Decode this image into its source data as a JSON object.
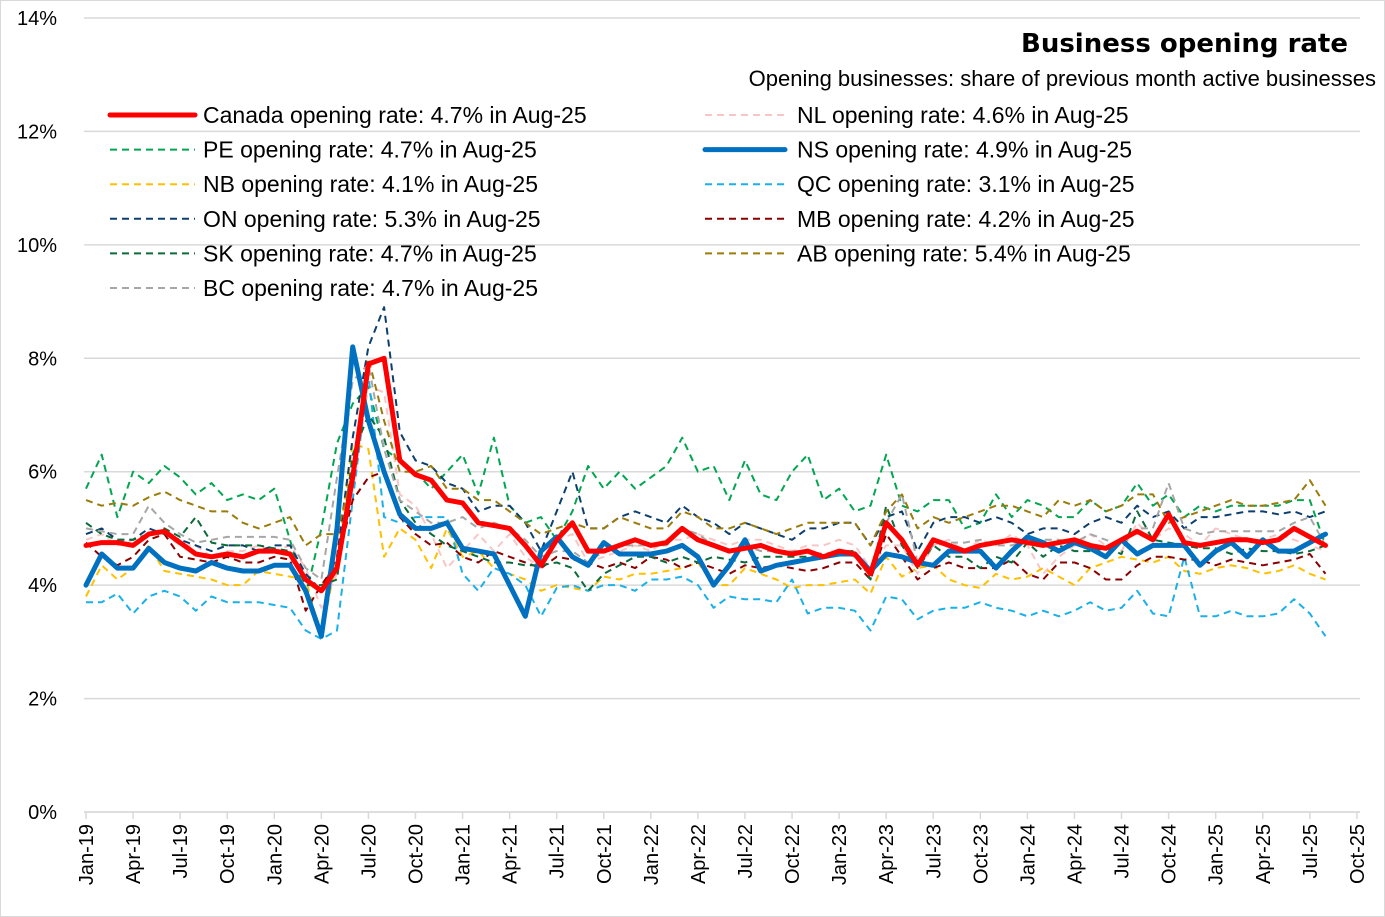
{
  "chart_data": {
    "type": "line",
    "title": "Business opening rate",
    "subtitle": "Opening businesses: share of previous month active businesses",
    "xlabel": "",
    "ylabel": "",
    "ylim": [
      0,
      14
    ],
    "yticks": [
      "0%",
      "2%",
      "4%",
      "6%",
      "8%",
      "10%",
      "12%",
      "14%"
    ],
    "ytick_values": [
      0,
      2,
      4,
      6,
      8,
      10,
      12,
      14
    ],
    "grid": true,
    "legend_position": "top",
    "xtick_labels": [
      "Jan-19",
      "Apr-19",
      "Jul-19",
      "Oct-19",
      "Jan-20",
      "Apr-20",
      "Jul-20",
      "Oct-20",
      "Jan-21",
      "Apr-21",
      "Jul-21",
      "Oct-21",
      "Jan-22",
      "Apr-22",
      "Jul-22",
      "Oct-22",
      "Jan-23",
      "Apr-23",
      "Jul-23",
      "Oct-23",
      "Jan-24",
      "Apr-24",
      "Jul-24",
      "Oct-24",
      "Jan-25",
      "Apr-25",
      "Jul-25",
      "Oct-25"
    ],
    "x_start": "Jan-19",
    "x_end_axis": "Oct-25",
    "n_points": 80,
    "series": [
      {
        "name": "Canada",
        "legend": "Canada opening rate: 4.7% in Aug-25",
        "color": "#ff0000",
        "style": "solid-thick",
        "values": [
          4.7,
          4.75,
          4.75,
          4.7,
          4.9,
          4.95,
          4.75,
          4.55,
          4.5,
          4.55,
          4.5,
          4.6,
          4.6,
          4.55,
          4.1,
          3.9,
          4.3,
          5.9,
          7.9,
          8.0,
          6.2,
          5.95,
          5.85,
          5.5,
          5.45,
          5.1,
          5.05,
          5.0,
          4.7,
          4.35,
          4.8,
          5.1,
          4.6,
          4.6,
          4.7,
          4.8,
          4.7,
          4.75,
          5.0,
          4.8,
          4.7,
          4.6,
          4.65,
          4.7,
          4.6,
          4.55,
          4.6,
          4.5,
          4.6,
          4.55,
          4.2,
          5.1,
          4.8,
          4.35,
          4.8,
          4.7,
          4.6,
          4.7,
          4.75,
          4.8,
          4.75,
          4.7,
          4.75,
          4.8,
          4.7,
          4.65,
          4.8,
          4.95,
          4.8,
          5.25,
          4.75,
          4.7,
          4.75,
          4.8,
          4.8,
          4.75,
          4.8,
          5.0,
          4.85,
          4.7
        ]
      },
      {
        "name": "NL",
        "legend": "NL opening rate: 4.6% in Aug-25",
        "color": "#f8c6c6",
        "style": "dashed",
        "values": [
          4.8,
          4.9,
          4.7,
          4.8,
          4.9,
          4.9,
          4.7,
          4.7,
          4.5,
          4.6,
          4.6,
          4.7,
          4.6,
          4.7,
          4.3,
          3.6,
          4.2,
          5.8,
          7.5,
          7.4,
          5.6,
          5.4,
          4.9,
          4.3,
          4.6,
          4.9,
          4.6,
          4.9,
          4.5,
          4.3,
          4.8,
          4.9,
          4.4,
          4.5,
          4.6,
          4.7,
          4.6,
          4.8,
          4.8,
          4.9,
          4.8,
          4.7,
          4.8,
          4.8,
          4.7,
          4.6,
          4.7,
          4.7,
          4.8,
          4.7,
          4.3,
          4.7,
          4.7,
          4.2,
          4.7,
          4.8,
          4.6,
          4.8,
          4.7,
          4.9,
          4.7,
          4.2,
          4.5,
          4.7,
          4.9,
          4.7,
          4.6,
          5.1,
          4.8,
          5.0,
          4.9,
          4.7,
          5.0,
          4.9,
          4.8,
          4.8,
          4.9,
          4.8,
          4.7,
          4.6
        ]
      },
      {
        "name": "PE",
        "legend": "PE opening rate: 4.7% in Aug-25",
        "color": "#00a650",
        "style": "dashed",
        "values": [
          5.7,
          6.3,
          5.2,
          6.0,
          5.8,
          6.1,
          5.9,
          5.6,
          5.8,
          5.5,
          5.6,
          5.5,
          5.7,
          4.8,
          3.8,
          5.0,
          6.5,
          7.2,
          7.5,
          6.4,
          6.2,
          6.0,
          5.7,
          6.0,
          6.3,
          5.6,
          6.6,
          5.4,
          5.1,
          5.2,
          4.8,
          5.3,
          6.1,
          5.7,
          6.0,
          5.7,
          5.9,
          6.1,
          6.6,
          6.0,
          6.1,
          5.5,
          6.2,
          5.6,
          5.5,
          6.0,
          6.3,
          5.5,
          5.7,
          5.3,
          5.4,
          6.3,
          5.4,
          5.3,
          5.5,
          5.5,
          5.0,
          5.1,
          5.6,
          5.2,
          5.5,
          5.4,
          5.2,
          5.2,
          5.5,
          5.3,
          5.4,
          5.8,
          5.4,
          5.6,
          5.2,
          5.4,
          5.3,
          5.4,
          5.4,
          5.4,
          5.4,
          5.5,
          5.5,
          4.7
        ]
      },
      {
        "name": "NS",
        "legend": "NS opening rate: 4.9% in Aug-25",
        "color": "#0070c0",
        "style": "solid-thick",
        "values": [
          4.0,
          4.55,
          4.3,
          4.3,
          4.65,
          4.4,
          4.3,
          4.25,
          4.4,
          4.3,
          4.25,
          4.25,
          4.35,
          4.35,
          3.9,
          3.1,
          5.0,
          8.2,
          6.9,
          6.0,
          5.25,
          5.0,
          5.0,
          5.1,
          4.65,
          4.6,
          4.55,
          4.0,
          3.45,
          4.6,
          4.85,
          4.5,
          4.35,
          4.75,
          4.55,
          4.55,
          4.55,
          4.6,
          4.7,
          4.5,
          4.0,
          4.35,
          4.8,
          4.25,
          4.35,
          4.4,
          4.45,
          4.5,
          4.55,
          4.55,
          4.25,
          4.55,
          4.5,
          4.4,
          4.35,
          4.6,
          4.6,
          4.6,
          4.3,
          4.6,
          4.85,
          4.75,
          4.6,
          4.75,
          4.65,
          4.5,
          4.8,
          4.55,
          4.7,
          4.7,
          4.7,
          4.35,
          4.6,
          4.75,
          4.5,
          4.8,
          4.6,
          4.6,
          4.75,
          4.9
        ]
      },
      {
        "name": "NB",
        "legend": "NB opening rate: 4.1% in Aug-25",
        "color": "#ffc000",
        "style": "dashed",
        "values": [
          3.8,
          4.35,
          4.1,
          4.3,
          4.7,
          4.25,
          4.2,
          4.15,
          4.1,
          4.0,
          4.0,
          4.25,
          4.2,
          4.15,
          4.1,
          3.1,
          4.5,
          6.5,
          6.4,
          4.5,
          5.0,
          4.8,
          4.3,
          5.0,
          4.5,
          4.6,
          4.3,
          4.2,
          4.1,
          3.9,
          4.0,
          3.95,
          3.9,
          4.15,
          4.1,
          4.2,
          4.2,
          4.25,
          4.3,
          4.4,
          4.0,
          4.0,
          4.3,
          4.2,
          4.1,
          3.95,
          4.0,
          4.0,
          4.05,
          4.1,
          3.85,
          4.5,
          4.15,
          4.3,
          4.35,
          4.1,
          4.0,
          3.95,
          4.2,
          4.1,
          4.15,
          4.3,
          4.15,
          4.0,
          4.3,
          4.4,
          4.5,
          4.45,
          4.4,
          4.5,
          4.25,
          4.2,
          4.3,
          4.35,
          4.3,
          4.2,
          4.25,
          4.35,
          4.2,
          4.1
        ]
      },
      {
        "name": "QC",
        "legend": "QC opening rate: 3.1% in Aug-25",
        "color": "#1ab0e8",
        "style": "dashed",
        "values": [
          3.7,
          3.7,
          3.85,
          3.5,
          3.8,
          3.9,
          3.8,
          3.55,
          3.8,
          3.7,
          3.7,
          3.7,
          3.65,
          3.6,
          3.2,
          3.05,
          3.2,
          5.5,
          7.7,
          5.2,
          5.1,
          5.2,
          5.2,
          5.2,
          4.2,
          3.9,
          4.3,
          4.2,
          4.0,
          3.45,
          3.95,
          4.0,
          3.9,
          4.0,
          4.0,
          3.9,
          4.1,
          4.1,
          4.15,
          4.0,
          3.6,
          3.8,
          3.75,
          3.75,
          3.7,
          4.1,
          3.5,
          3.6,
          3.6,
          3.55,
          3.2,
          3.8,
          3.75,
          3.4,
          3.55,
          3.6,
          3.6,
          3.7,
          3.6,
          3.55,
          3.45,
          3.55,
          3.45,
          3.55,
          3.7,
          3.55,
          3.6,
          3.9,
          3.5,
          3.45,
          4.5,
          3.45,
          3.45,
          3.55,
          3.45,
          3.45,
          3.5,
          3.75,
          3.5,
          3.1
        ]
      },
      {
        "name": "ON",
        "legend": "ON opening rate: 5.3% in Aug-25",
        "color": "#0d3f6e",
        "style": "dashed",
        "values": [
          4.9,
          5.0,
          4.8,
          4.8,
          5.0,
          4.9,
          4.8,
          4.7,
          4.6,
          4.7,
          4.7,
          4.6,
          4.7,
          4.7,
          4.2,
          3.9,
          4.5,
          6.6,
          8.2,
          8.9,
          6.7,
          6.2,
          6.1,
          5.8,
          5.7,
          5.3,
          5.4,
          5.4,
          5.1,
          4.6,
          5.3,
          6.0,
          5.0,
          5.0,
          5.2,
          5.3,
          5.2,
          5.1,
          5.4,
          5.2,
          5.1,
          4.9,
          5.1,
          5.0,
          4.9,
          4.8,
          5.0,
          5.0,
          5.1,
          5.1,
          4.7,
          5.2,
          5.3,
          4.6,
          5.1,
          5.2,
          5.2,
          5.1,
          5.2,
          5.1,
          4.9,
          5.0,
          5.0,
          4.9,
          5.1,
          5.2,
          5.1,
          5.4,
          5.2,
          5.3,
          5.0,
          5.2,
          5.2,
          5.25,
          5.3,
          5.3,
          5.25,
          5.3,
          5.2,
          5.3
        ]
      },
      {
        "name": "MB",
        "legend": "MB opening rate: 4.2% in Aug-25",
        "color": "#8b0000",
        "style": "dashed",
        "values": [
          4.75,
          4.5,
          4.35,
          4.5,
          4.8,
          4.9,
          4.5,
          4.45,
          4.4,
          4.5,
          4.4,
          4.4,
          4.5,
          4.45,
          3.55,
          4.0,
          4.4,
          5.5,
          5.9,
          6.0,
          5.2,
          4.9,
          4.7,
          4.75,
          4.5,
          4.4,
          4.6,
          4.5,
          4.4,
          4.3,
          4.5,
          4.45,
          4.4,
          4.3,
          4.4,
          4.3,
          4.5,
          4.45,
          4.3,
          4.4,
          4.3,
          4.2,
          4.35,
          4.3,
          4.35,
          4.3,
          4.25,
          4.3,
          4.4,
          4.4,
          4.1,
          4.9,
          4.5,
          4.1,
          4.3,
          4.4,
          4.3,
          4.3,
          4.3,
          4.45,
          4.2,
          4.1,
          4.4,
          4.4,
          4.3,
          4.1,
          4.1,
          4.35,
          4.5,
          4.5,
          4.45,
          4.45,
          4.35,
          4.45,
          4.4,
          4.35,
          4.4,
          4.45,
          4.55,
          4.2
        ]
      },
      {
        "name": "SK",
        "legend": "SK opening rate: 4.7% in Aug-25",
        "color": "#0b6b3a",
        "style": "dashed",
        "values": [
          5.1,
          4.9,
          4.8,
          4.8,
          4.9,
          5.0,
          4.85,
          5.2,
          4.75,
          4.7,
          4.7,
          4.7,
          4.65,
          4.6,
          4.0,
          4.0,
          4.1,
          6.3,
          7.0,
          6.6,
          5.5,
          5.1,
          4.9,
          4.7,
          4.6,
          4.5,
          4.4,
          4.4,
          4.35,
          4.35,
          4.4,
          4.3,
          3.9,
          4.2,
          4.35,
          4.5,
          4.5,
          4.4,
          4.5,
          4.4,
          4.5,
          4.45,
          4.4,
          4.5,
          4.5,
          4.5,
          4.5,
          4.5,
          4.6,
          4.6,
          4.1,
          5.4,
          4.7,
          4.3,
          4.7,
          4.5,
          4.5,
          4.3,
          4.5,
          4.4,
          4.75,
          4.5,
          4.7,
          4.6,
          4.6,
          4.65,
          4.55,
          5.3,
          4.8,
          4.75,
          4.7,
          4.65,
          4.65,
          4.55,
          4.65,
          4.6,
          4.6,
          4.55,
          4.6,
          4.7
        ]
      },
      {
        "name": "AB",
        "legend": "AB opening rate: 5.4% in Aug-25",
        "color": "#9b7b0a",
        "style": "dashed",
        "values": [
          5.5,
          5.4,
          5.45,
          5.4,
          5.55,
          5.65,
          5.5,
          5.4,
          5.3,
          5.3,
          5.1,
          5.0,
          5.1,
          5.2,
          4.7,
          4.9,
          4.9,
          6.0,
          8.0,
          6.9,
          6.0,
          6.0,
          6.1,
          5.7,
          5.7,
          5.5,
          5.5,
          5.3,
          5.1,
          4.9,
          5.0,
          5.1,
          5.0,
          5.0,
          5.2,
          5.1,
          5.0,
          5.0,
          5.3,
          5.2,
          5.0,
          5.0,
          5.1,
          5.0,
          4.9,
          5.0,
          5.1,
          5.1,
          5.1,
          5.1,
          4.7,
          5.3,
          5.6,
          5.0,
          5.2,
          5.1,
          5.2,
          5.3,
          5.4,
          5.4,
          5.3,
          5.2,
          5.5,
          5.4,
          5.5,
          5.3,
          5.4,
          5.6,
          5.6,
          5.1,
          5.2,
          5.3,
          5.4,
          5.5,
          5.4,
          5.4,
          5.45,
          5.5,
          5.85,
          5.4
        ]
      },
      {
        "name": "BC",
        "legend": "BC opening rate: 4.7% in Aug-25",
        "color": "#a6a6a6",
        "style": "dashed",
        "values": [
          5.0,
          4.95,
          4.9,
          4.9,
          5.4,
          5.1,
          4.9,
          4.75,
          4.8,
          4.85,
          4.85,
          4.85,
          4.85,
          4.8,
          4.3,
          4.1,
          5.9,
          7.6,
          7.9,
          6.4,
          5.5,
          5.3,
          5.1,
          5.1,
          5.2,
          5.0,
          5.1,
          5.0,
          4.8,
          4.5,
          4.6,
          4.6,
          4.4,
          4.6,
          4.7,
          4.7,
          4.7,
          4.7,
          5.0,
          4.9,
          4.7,
          4.6,
          4.7,
          4.6,
          4.6,
          4.6,
          4.6,
          4.55,
          4.6,
          4.5,
          4.3,
          5.1,
          5.6,
          4.4,
          4.7,
          4.75,
          4.75,
          4.8,
          4.7,
          4.7,
          4.8,
          4.8,
          4.8,
          4.75,
          4.9,
          4.8,
          4.7,
          5.0,
          5.0,
          5.8,
          5.0,
          4.9,
          4.95,
          4.95,
          4.95,
          4.95,
          4.95,
          5.1,
          5.2,
          4.7
        ]
      }
    ]
  }
}
